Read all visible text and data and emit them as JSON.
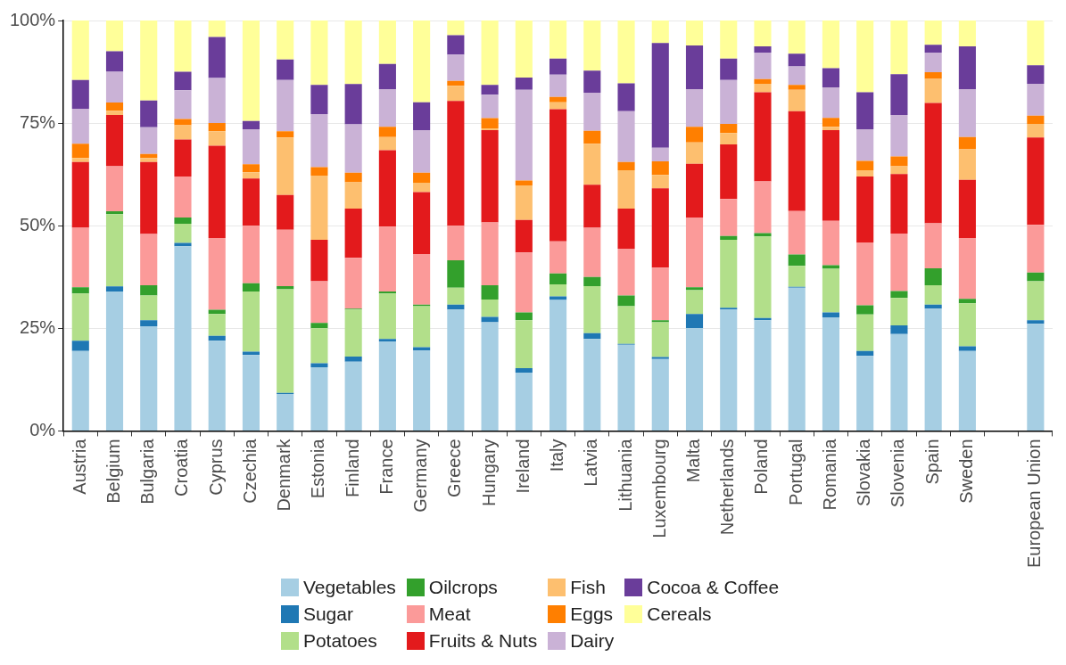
{
  "chart_data": {
    "type": "bar",
    "stacked": true,
    "legend": "bottom",
    "grid": "y",
    "categories": [
      "Austria",
      "Belgium",
      "Bulgaria",
      "Croatia",
      "Cyprus",
      "Czechia",
      "Denmark",
      "Estonia",
      "Finland",
      "France",
      "Germany",
      "Greece",
      "Hungary",
      "Ireland",
      "Italy",
      "Latvia",
      "Lithuania",
      "Luxembourg",
      "Malta",
      "Netherlands",
      "Poland",
      "Portugal",
      "Romania",
      "Slovakia",
      "Slovenia",
      "Spain",
      "Sweden",
      null,
      "European Union"
    ],
    "ylim": [
      0,
      100
    ],
    "yticks": [
      {
        "value": 0,
        "label": "0%"
      },
      {
        "value": 25,
        "label": "25%"
      },
      {
        "value": 50,
        "label": "50%"
      },
      {
        "value": 75,
        "label": "75%"
      },
      {
        "value": 100,
        "label": "100%"
      }
    ],
    "series": [
      {
        "name": "Vegetables",
        "color": "#a6cee3",
        "values": [
          19.5,
          34,
          25.5,
          45,
          22,
          18.5,
          9,
          15.5,
          16.9,
          21.8,
          19.6,
          29.6,
          26.5,
          14.2,
          31.9,
          22.4,
          21,
          17.5,
          25.1,
          29.6,
          27,
          34.9,
          27.7,
          18.3,
          23.6,
          29.8,
          19.5,
          null,
          26.1
        ]
      },
      {
        "name": "Sugar",
        "color": "#1f78b4",
        "values": [
          2.5,
          1.2,
          1.5,
          0.8,
          1.2,
          0.8,
          0.3,
          1,
          1.2,
          0.6,
          0.8,
          1.2,
          1.3,
          1.1,
          0.9,
          1.4,
          0.2,
          0.5,
          3.4,
          0.4,
          0.5,
          0.2,
          1.2,
          1.2,
          2.1,
          1,
          1.1,
          null,
          0.9
        ]
      },
      {
        "name": "Potatoes",
        "color": "#b2df8a",
        "values": [
          11.5,
          17.6,
          6,
          4.7,
          5.3,
          14.7,
          25.2,
          8.5,
          11.5,
          11.1,
          10,
          4.1,
          4.2,
          11.7,
          2.9,
          11.5,
          9.2,
          8.5,
          5.8,
          16.6,
          19.9,
          5.1,
          10.6,
          8.9,
          6.7,
          4.7,
          10.5,
          null,
          9.5
        ]
      },
      {
        "name": "Oilcrops",
        "color": "#33a02c",
        "values": [
          1.5,
          0.7,
          2.5,
          1.5,
          1,
          2,
          0.8,
          1.3,
          0.2,
          0.5,
          0.4,
          6.7,
          3.5,
          1.9,
          2.7,
          2.2,
          2.6,
          0.5,
          0.7,
          0.9,
          0.8,
          2.8,
          0.9,
          2.2,
          1.7,
          4.1,
          1.1,
          null,
          2.1
        ]
      },
      {
        "name": "Meat",
        "color": "#fb9a99",
        "values": [
          14.5,
          11,
          12.5,
          10,
          17.5,
          14,
          13.7,
          10.2,
          12.4,
          15.8,
          12.3,
          8.4,
          15.3,
          14.6,
          7.8,
          12,
          11.4,
          12.8,
          17,
          9,
          12.6,
          10.6,
          10.8,
          15.3,
          14,
          11,
          14.8,
          null,
          11.6
        ]
      },
      {
        "name": "Fruits & Nuts",
        "color": "#e31a1c",
        "values": [
          16,
          12.5,
          17.5,
          9,
          22.5,
          11.5,
          8.5,
          10.1,
          12,
          18.6,
          15.1,
          30.4,
          22.5,
          7.9,
          32.2,
          10.5,
          9.8,
          19.3,
          13.1,
          13.3,
          21.7,
          24.3,
          22.1,
          16.1,
          14.5,
          29.3,
          14.2,
          null,
          21.3
        ]
      },
      {
        "name": "Fish",
        "color": "#fdbf6f",
        "values": [
          1,
          1,
          1,
          3.5,
          3.5,
          1.5,
          14,
          15.6,
          6.4,
          3.2,
          2.3,
          3.7,
          0.4,
          8.4,
          1.7,
          10,
          9.3,
          3.3,
          5.2,
          2.8,
          2.1,
          5.2,
          0.8,
          1.5,
          1.9,
          5.9,
          7.4,
          null,
          3.3
        ]
      },
      {
        "name": "Eggs",
        "color": "#ff7f00",
        "values": [
          3.5,
          2,
          1,
          1.5,
          2,
          2,
          1.5,
          2.1,
          2.3,
          2.5,
          2.4,
          1.2,
          2.5,
          1.2,
          1.3,
          3.1,
          2,
          3.3,
          3.8,
          2.2,
          1.1,
          1.2,
          2.2,
          2.3,
          2.4,
          1.6,
          3,
          null,
          2
        ]
      },
      {
        "name": "Dairy",
        "color": "#cab2d6",
        "values": [
          8.5,
          7.5,
          6.5,
          7,
          11,
          8.5,
          12.5,
          12.9,
          11.8,
          9.2,
          10.4,
          6.4,
          5.7,
          22.1,
          5.4,
          9.3,
          12.4,
          3.3,
          9.2,
          10.7,
          6.5,
          4.5,
          7.4,
          7.7,
          10.1,
          4.8,
          11.7,
          null,
          7.8
        ]
      },
      {
        "name": "Cocoa & Coffee",
        "color": "#6a3d9a",
        "values": [
          7,
          5,
          6.5,
          4.5,
          10,
          2,
          5,
          7.1,
          9.8,
          6.1,
          6.8,
          4.7,
          2.4,
          3,
          3.9,
          5.4,
          6.8,
          25.5,
          10.6,
          5.2,
          1.5,
          3.1,
          4.7,
          9,
          9.9,
          1.9,
          10.4,
          null,
          4.5
        ]
      },
      {
        "name": "Cereals",
        "color": "#ffff99",
        "values": [
          14.5,
          7.5,
          19.5,
          12.5,
          4,
          24.5,
          9.5,
          15.7,
          15.5,
          10.6,
          19.9,
          3.6,
          15.7,
          13.9,
          9.3,
          12.2,
          15.3,
          5.5,
          6.1,
          9.3,
          6.3,
          8.1,
          11.6,
          17.5,
          13.1,
          5.9,
          6.3,
          null,
          10.9
        ]
      }
    ]
  }
}
